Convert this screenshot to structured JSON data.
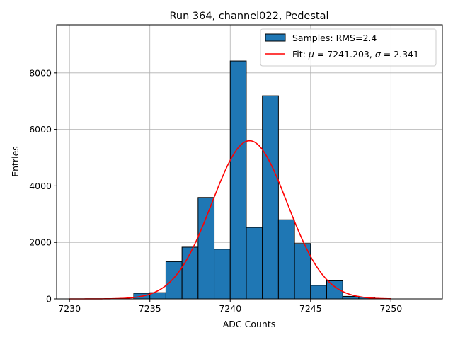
{
  "chart_data": {
    "type": "bar",
    "title": "Run 364, channel022, Pedestal",
    "xlabel": "ADC Counts",
    "ylabel": "Entries",
    "xlim": [
      7229.2,
      7253.2
    ],
    "ylim": [
      0,
      9700
    ],
    "xticks": [
      7230,
      7235,
      7240,
      7245,
      7250
    ],
    "yticks": [
      0,
      2000,
      4000,
      6000,
      8000
    ],
    "grid": true,
    "bin_width": 1,
    "bins": [
      {
        "left": 7234,
        "value": 200
      },
      {
        "left": 7235,
        "value": 220
      },
      {
        "left": 7236,
        "value": 1320
      },
      {
        "left": 7237,
        "value": 1830
      },
      {
        "left": 7238,
        "value": 3590
      },
      {
        "left": 7239,
        "value": 1760
      },
      {
        "left": 7240,
        "value": 8420
      },
      {
        "left": 7241,
        "value": 2530
      },
      {
        "left": 7242,
        "value": 7190
      },
      {
        "left": 7243,
        "value": 2800
      },
      {
        "left": 7244,
        "value": 1960
      },
      {
        "left": 7245,
        "value": 480
      },
      {
        "left": 7246,
        "value": 640
      },
      {
        "left": 7247,
        "value": 90
      },
      {
        "left": 7248,
        "value": 60
      }
    ],
    "fit": {
      "mu": 7241.203,
      "sigma": 2.341,
      "peak": 5600,
      "x_range": [
        7230,
        7250
      ]
    },
    "colors": {
      "bar_fill": "#1f77b4",
      "bar_edge": "#000000",
      "fit_line": "#ff0000",
      "grid": "#b0b0b0"
    },
    "legend": {
      "position": "top-right",
      "samples_label": "Samples: RMS=2.4",
      "fit_label_prefix": "Fit: ",
      "fit_label_mu": "μ",
      "fit_label_mid": " = 7241.203, ",
      "fit_label_sigma": "σ",
      "fit_label_suffix": " = 2.341"
    }
  }
}
